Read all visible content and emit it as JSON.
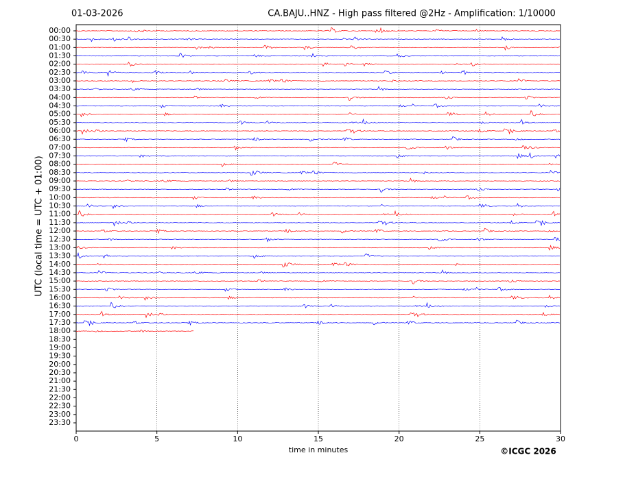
{
  "chart_data": {
    "type": "helicorder",
    "date": "01-03-2026",
    "title": "CA.BAJU..HNZ - High pass filtered @2Hz - Amplification: 1/10000",
    "xlabel": "time in minutes",
    "ylabel": "UTC (local time = UTC + 01:00)",
    "credit": "©ICGC 2026",
    "categories": [
      "00:00",
      "00:30",
      "01:00",
      "01:30",
      "02:00",
      "02:30",
      "03:00",
      "03:30",
      "04:00",
      "04:30",
      "05:00",
      "05:30",
      "06:00",
      "06:30",
      "07:00",
      "07:30",
      "08:00",
      "08:30",
      "09:00",
      "09:30",
      "10:00",
      "10:30",
      "11:00",
      "11:30",
      "12:00",
      "12:30",
      "13:00",
      "13:30",
      "14:00",
      "14:30",
      "15:00",
      "15:30",
      "16:00",
      "16:30",
      "17:00",
      "17:30",
      "18:00",
      "18:30",
      "19:00",
      "19:30",
      "20:00",
      "20:30",
      "21:00",
      "21:30",
      "22:00",
      "22:30",
      "23:00",
      "23:30"
    ],
    "values": [
      30,
      30,
      30,
      30,
      30,
      30,
      30,
      30,
      30,
      30,
      30,
      30,
      30,
      30,
      30,
      30,
      30,
      30,
      30,
      30,
      30,
      30,
      30,
      30,
      30,
      30,
      30,
      30,
      30,
      30,
      30,
      30,
      30,
      30,
      30,
      30,
      7.3,
      null,
      null,
      null,
      null,
      null,
      null,
      null,
      null,
      null,
      null,
      null
    ],
    "colors": [
      "#ff0000",
      "#0000ff"
    ],
    "xlim": [
      0,
      30
    ],
    "xticks": [
      0,
      5,
      10,
      15,
      20,
      25,
      30
    ],
    "grid": true
  }
}
